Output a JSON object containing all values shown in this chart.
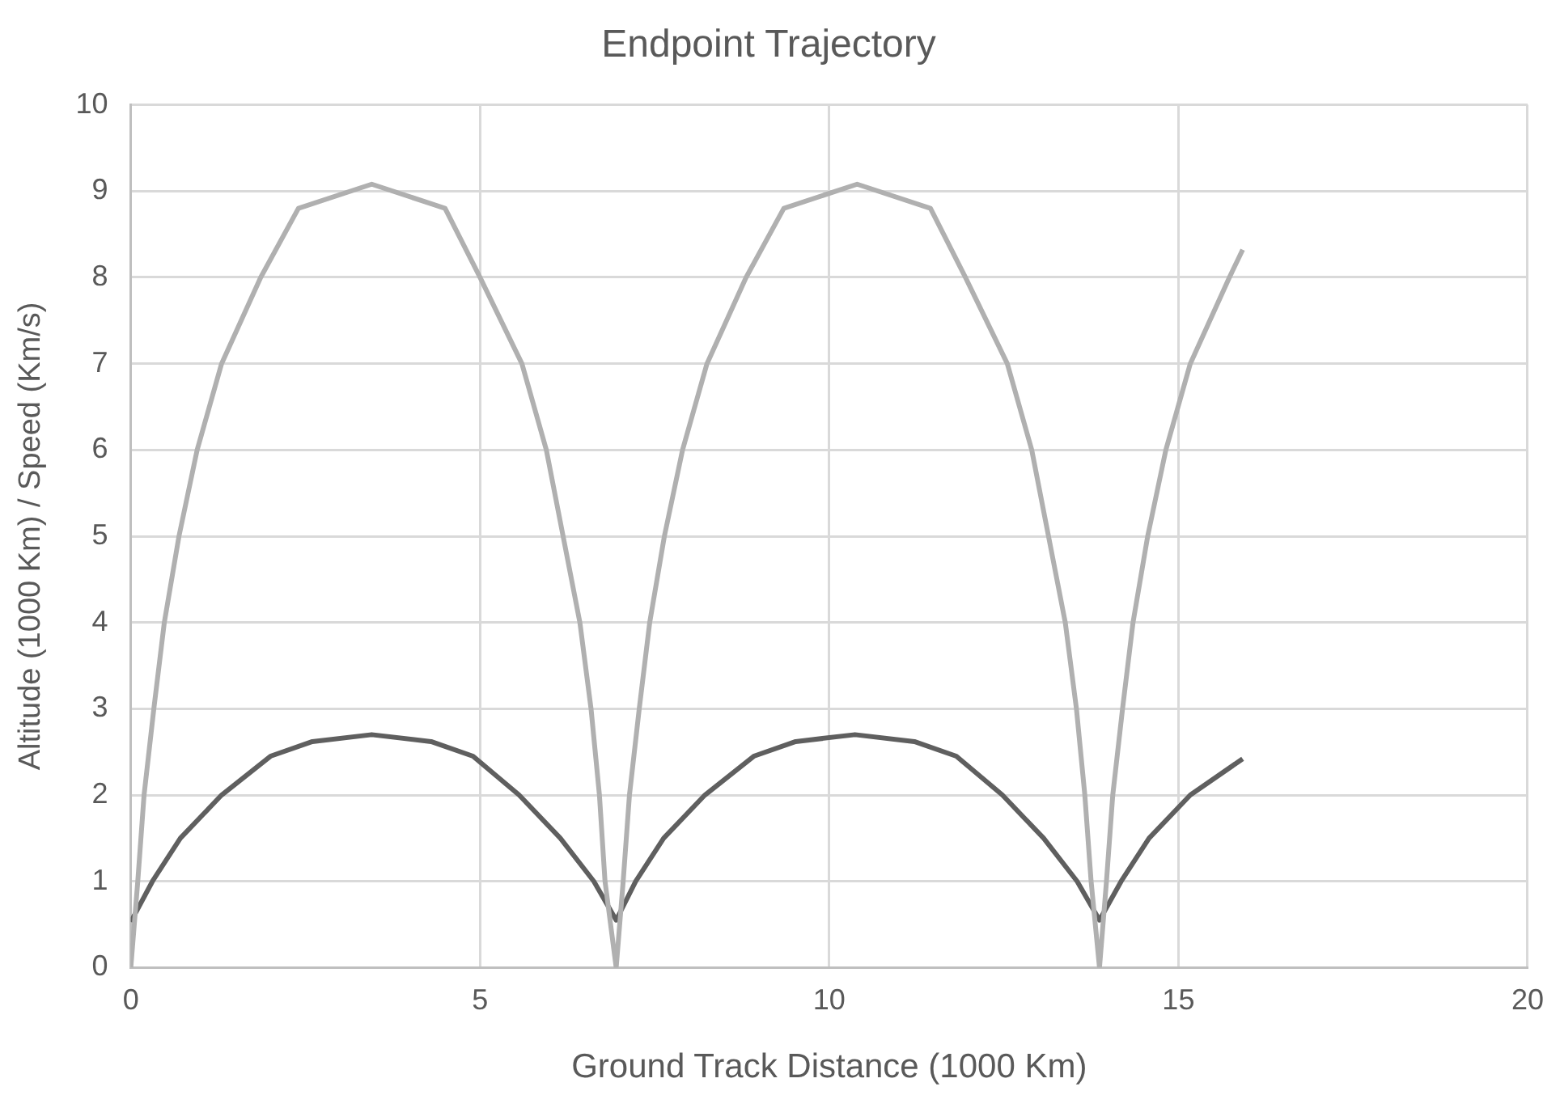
{
  "chart_data": {
    "type": "line",
    "title": "Endpoint Trajectory",
    "xlabel": "Ground Track Distance (1000 Km)",
    "ylabel": "Altitude (1000 Km) / Speed (Km/s)",
    "xlim": [
      0,
      20
    ],
    "xticks": [
      0,
      5,
      10,
      15,
      20
    ],
    "ylim": [
      0,
      10
    ],
    "yticks": [
      0,
      1,
      2,
      3,
      4,
      5,
      6,
      7,
      8,
      9,
      10
    ],
    "grid": true,
    "legend": false,
    "marker": "none",
    "line_style": "solid",
    "series": [
      {
        "color": "#b0b0b0",
        "x": [
          0,
          0.1,
          0.19,
          0.33,
          0.48,
          0.69,
          0.95,
          1.3,
          1.86,
          2.4,
          3.45,
          4.5,
          5.0,
          5.6,
          5.95,
          6.19,
          6.43,
          6.59,
          6.71,
          6.79,
          6.95,
          7.05,
          7.14,
          7.28,
          7.43,
          7.64,
          7.9,
          8.25,
          8.81,
          9.35,
          10.4,
          11.45,
          11.95,
          12.55,
          12.9,
          13.14,
          13.38,
          13.54,
          13.66,
          13.75,
          13.87,
          13.97,
          14.06,
          14.2,
          14.35,
          14.56,
          14.82,
          15.17,
          15.73,
          15.92
        ],
        "values": [
          0,
          1,
          2,
          3,
          4,
          5,
          6,
          7,
          8,
          8.8,
          9.08,
          8.8,
          8,
          7,
          6,
          5,
          4,
          3,
          2,
          1,
          0,
          1,
          2,
          3,
          4,
          5,
          6,
          7,
          8,
          8.8,
          9.08,
          8.8,
          8,
          7,
          6,
          5,
          4,
          3,
          2,
          1,
          0,
          1,
          2,
          3,
          4,
          5,
          6,
          7,
          8,
          8.32
        ]
      },
      {
        "color": "#5f5f5f",
        "x": [
          0,
          0.31,
          0.71,
          1.3,
          2.0,
          2.6,
          3.45,
          4.3,
          4.9,
          5.56,
          6.15,
          6.63,
          6.95,
          7.23,
          7.63,
          8.22,
          8.92,
          9.52,
          10.37,
          11.22,
          11.82,
          12.48,
          13.07,
          13.55,
          13.87,
          14.18,
          14.58,
          15.17,
          15.92
        ],
        "values": [
          0.53,
          1,
          1.5,
          2,
          2.45,
          2.62,
          2.7,
          2.62,
          2.45,
          2,
          1.5,
          1,
          0.55,
          1,
          1.5,
          2,
          2.45,
          2.62,
          2.7,
          2.62,
          2.45,
          2,
          1.5,
          1,
          0.55,
          1,
          1.5,
          2,
          2.42
        ]
      }
    ]
  }
}
